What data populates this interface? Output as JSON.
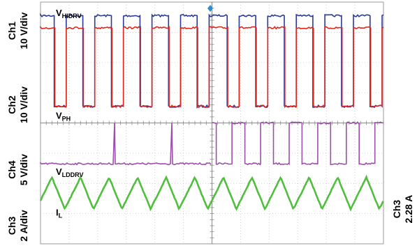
{
  "chart_data": {
    "type": "line",
    "grid": true,
    "panel": {
      "divisions_x": 12,
      "divisions_y": 8
    },
    "channel_labels": [
      {
        "id": "ch1",
        "lines": [
          "Ch1",
          "10 V/div"
        ]
      },
      {
        "id": "ch2",
        "lines": [
          "Ch2",
          "10 V/div"
        ]
      },
      {
        "id": "ch4",
        "lines": [
          "Ch4",
          "5 V/div"
        ]
      },
      {
        "id": "ch3",
        "lines": [
          "Ch3",
          "2 A/div"
        ]
      }
    ],
    "right_label": {
      "lines": [
        "Ch3",
        "2.28 A"
      ]
    },
    "series": [
      {
        "name": "VHIDRV",
        "label_main": "V",
        "label_sub": "HIDRV",
        "color": "#2a3a9c",
        "waveform": "pulse",
        "high_div": 0.45,
        "low_div": 3.45,
        "label_y_div": 0.35
      },
      {
        "name": "VPH",
        "label_main": "V",
        "label_sub": "PH",
        "color": "#e1261c",
        "waveform": "pulse",
        "high_div": 0.85,
        "low_div": 3.45,
        "label_y_div": 3.75
      },
      {
        "name": "VLDDRV",
        "label_main": "V",
        "label_sub": "LDDRV",
        "color": "#9c4fa8",
        "waveform": "spikes_then_pulse",
        "high_div": 4.0,
        "low_div": 5.35,
        "label_y_div": 5.6
      },
      {
        "name": "IL",
        "label_main": "I",
        "label_sub": "L",
        "color": "#4fbf3d",
        "waveform": "triangle",
        "high_div": 5.8,
        "low_div": 6.85,
        "label_y_div": 6.95
      }
    ],
    "switching": {
      "first_half_periods": 6,
      "second_half_periods": 6,
      "high_fraction_first": 0.55,
      "high_fraction_second": 0.55
    }
  }
}
